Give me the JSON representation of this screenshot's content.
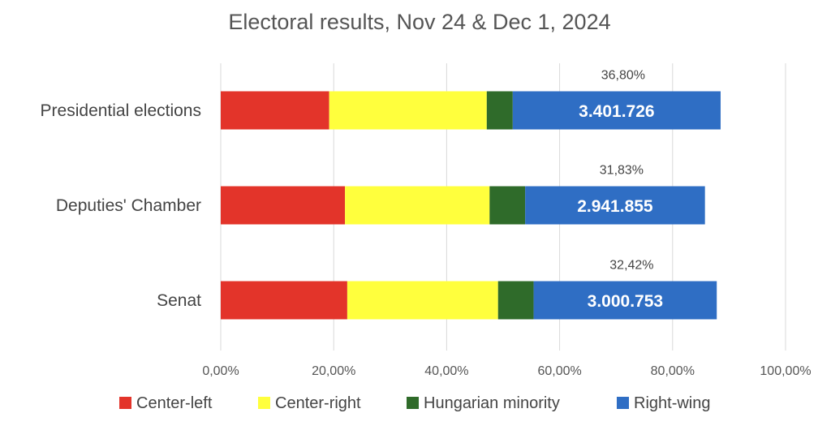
{
  "chart_data": {
    "type": "bar",
    "orientation": "horizontal",
    "stacked": true,
    "title": "Electoral results, Nov 24 & Dec 1, 2024",
    "xlim": [
      0,
      100
    ],
    "x_ticks": [
      "0,00%",
      "20,00%",
      "40,00%",
      "60,00%",
      "80,00%",
      "100,00%"
    ],
    "grid": "vertical",
    "legend_position": "bottom",
    "categories": [
      "Presidential elections",
      "Deputies' Chamber",
      "Senat"
    ],
    "series": [
      {
        "name": "Center-left",
        "color": "#e3342a",
        "values": [
          19.2,
          22.0,
          22.4
        ]
      },
      {
        "name": "Center-right",
        "color": "#ffff3d",
        "values": [
          27.9,
          25.6,
          26.7
        ]
      },
      {
        "name": "Hungarian minority",
        "color": "#2f6b2a",
        "values": [
          4.6,
          6.3,
          6.3
        ]
      },
      {
        "name": "Right-wing",
        "color": "#2f6ec4",
        "values": [
          36.8,
          31.83,
          32.42
        ]
      }
    ],
    "annotations": {
      "right_wing_share": [
        "36,80%",
        "31,83%",
        "32,42%"
      ],
      "right_wing_votes": [
        "3.401.726",
        "2.941.855",
        "3.000.753"
      ]
    }
  }
}
